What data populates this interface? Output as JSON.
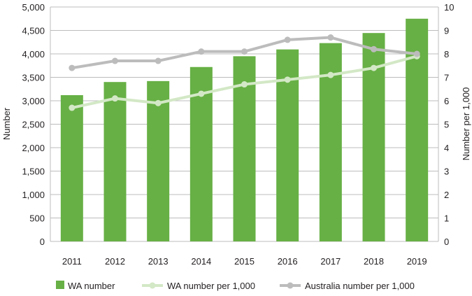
{
  "chart_data": {
    "type": "bar",
    "categories": [
      "2011",
      "2012",
      "2013",
      "2014",
      "2015",
      "2016",
      "2017",
      "2018",
      "2019"
    ],
    "series": [
      {
        "name": "WA number",
        "type": "bar",
        "axis": "left",
        "color": "#67b045",
        "values": [
          3120,
          3400,
          3420,
          3720,
          3950,
          4095,
          4230,
          4445,
          4750
        ]
      },
      {
        "name": "WA number per 1,000",
        "type": "line",
        "axis": "right",
        "color": "#d3e8c6",
        "values": [
          5.7,
          6.1,
          5.9,
          6.3,
          6.7,
          6.9,
          7.1,
          7.4,
          7.9
        ]
      },
      {
        "name": "Australia number per 1,000",
        "type": "line",
        "axis": "right",
        "color": "#bcbcbc",
        "values": [
          7.4,
          7.7,
          7.7,
          8.1,
          8.1,
          8.6,
          8.7,
          8.2,
          8.0
        ]
      }
    ],
    "ylabel": "Number",
    "y2label": "Number per 1,000",
    "ylim": [
      0,
      5000
    ],
    "y2lim": [
      0,
      10
    ],
    "yticks": [
      "0",
      "500",
      "1,000",
      "1,500",
      "2,000",
      "2,500",
      "3,000",
      "3,500",
      "4,000",
      "4,500",
      "5,000"
    ],
    "y2ticks": [
      "0",
      "1",
      "2",
      "3",
      "4",
      "5",
      "6",
      "7",
      "8",
      "9",
      "10"
    ],
    "grid": true,
    "legend_position": "bottom",
    "gridColor": "#bcbcbc"
  }
}
